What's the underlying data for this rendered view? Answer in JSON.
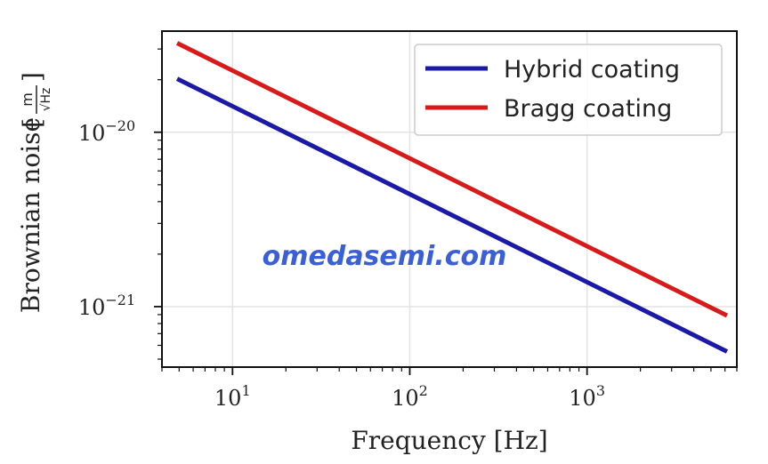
{
  "chart_data": {
    "type": "line",
    "xlabel": "Frequency [Hz]",
    "ylabel_text": "Brownian noise",
    "ylabel_unit_numerator": "m",
    "ylabel_unit_denominator": "√Hz",
    "x_scale": "log",
    "y_scale": "log",
    "xlim": [
      4,
      7000
    ],
    "ylim": [
      4.5e-22,
      3.8e-20
    ],
    "x_ticks": [
      {
        "value": 10,
        "base": "10",
        "exp": "1"
      },
      {
        "value": 100,
        "base": "10",
        "exp": "2"
      },
      {
        "value": 1000,
        "base": "10",
        "exp": "3"
      }
    ],
    "y_ticks": [
      {
        "value": 1e-21,
        "base": "10",
        "exp": "−21"
      },
      {
        "value": 1e-20,
        "base": "10",
        "exp": "−20"
      }
    ],
    "grid": true,
    "legend_position": "top-right",
    "series": [
      {
        "name": "Hybrid coating",
        "color": "#1a1aa6",
        "x": [
          5,
          6000
        ],
        "y": [
          2e-20,
          5.6e-22
        ]
      },
      {
        "name": "Bragg coating",
        "color": "#d91a1a",
        "x": [
          5,
          6000
        ],
        "y": [
          3.2e-20,
          9e-22
        ]
      }
    ]
  },
  "watermark": "omedasemi.com"
}
